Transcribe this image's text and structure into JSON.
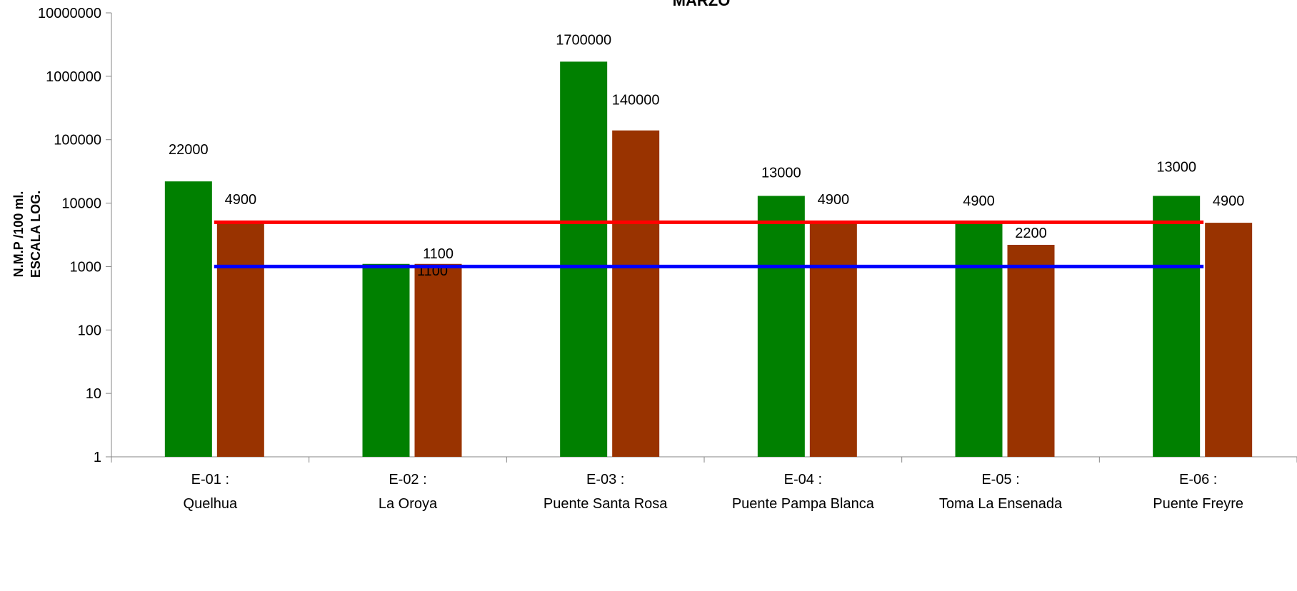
{
  "chart_data": {
    "type": "bar",
    "title": "MARZO",
    "ylabel_line1": "N.M.P /100 ml.",
    "ylabel_line2": "ESCALA LOG.",
    "yscale": "log",
    "ylim": [
      1,
      10000000
    ],
    "y_ticks": [
      "1",
      "10",
      "100",
      "1000",
      "10000",
      "100000",
      "1000000",
      "10000000"
    ],
    "categories": [
      {
        "code": "E-01 :",
        "name": "Quelhua"
      },
      {
        "code": "E-02 :",
        "name": "La Oroya"
      },
      {
        "code": "E-03 :",
        "name": "Puente Santa Rosa"
      },
      {
        "code": "E-04 :",
        "name": "Puente Pampa Blanca"
      },
      {
        "code": "E-05 :",
        "name": "Toma La Ensenada"
      },
      {
        "code": "E-06 :",
        "name": "Puente Freyre"
      }
    ],
    "series": [
      {
        "color": "#008000",
        "values": [
          22000,
          1100,
          1700000,
          13000,
          4900,
          13000
        ],
        "labels": [
          "22000",
          "",
          "1700000",
          "13000",
          "4900",
          "13000"
        ]
      },
      {
        "color": "#993300",
        "values": [
          4900,
          1100,
          140000,
          4900,
          2200,
          4900
        ],
        "labels": [
          "4900",
          "1100",
          "140000",
          "4900",
          "2200",
          "4900"
        ]
      }
    ],
    "extra_labels": [
      "1100"
    ],
    "reference_lines": [
      {
        "color": "#ff0000",
        "value": 5000
      },
      {
        "color": "#0000ff",
        "value": 1000
      }
    ],
    "grid": false
  }
}
